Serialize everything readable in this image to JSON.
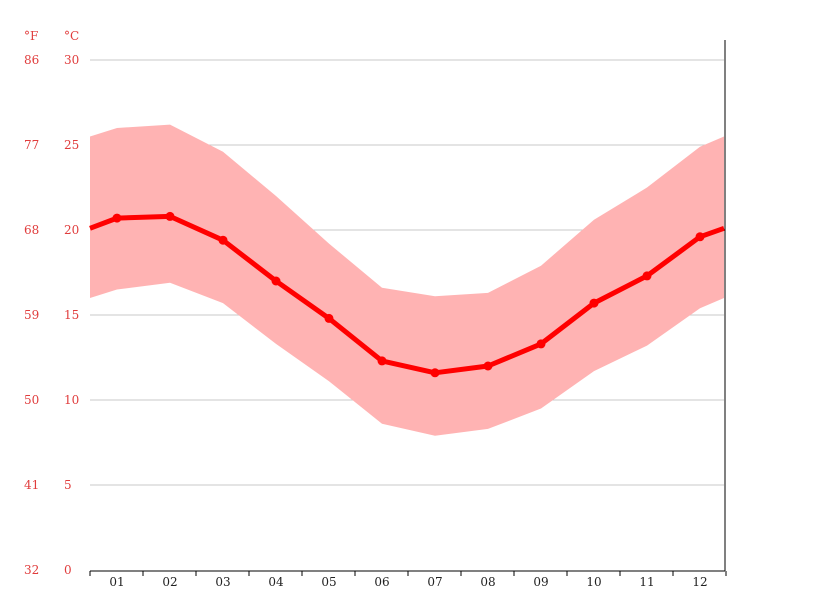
{
  "chart_data": {
    "type": "line",
    "unit_labels": {
      "left": "°F",
      "right": "°C"
    },
    "categories": [
      "01",
      "02",
      "03",
      "04",
      "05",
      "06",
      "07",
      "08",
      "09",
      "10",
      "11",
      "12"
    ],
    "y_ticks_c": [
      0,
      5,
      10,
      15,
      20,
      25,
      30
    ],
    "y_ticks_f": [
      32,
      41,
      50,
      59,
      68,
      77,
      86
    ],
    "ylim": [
      0,
      30
    ],
    "grid": true,
    "series": [
      {
        "values": [
          20.7,
          20.8,
          19.4,
          17.0,
          14.8,
          12.3,
          11.6,
          12.0,
          13.3,
          15.7,
          17.3,
          19.6
        ]
      }
    ],
    "band": {
      "upper": [
        26.0,
        26.2,
        24.6,
        22.0,
        19.2,
        16.6,
        16.1,
        16.3,
        17.9,
        20.6,
        22.5,
        24.9
      ],
      "lower": [
        16.5,
        16.9,
        15.7,
        13.3,
        11.1,
        8.6,
        7.9,
        8.3,
        9.5,
        11.7,
        13.2,
        15.4
      ]
    },
    "edge_values": {
      "line": [
        20.1,
        20.1
      ],
      "upper": [
        25.5,
        25.5
      ],
      "lower": [
        16.0,
        16.0
      ]
    },
    "colors": {
      "line": "#ff0000",
      "band": "#ffb3b3",
      "labels": "#e03c3c",
      "grid": "#c8c8c8",
      "axis": "#000000"
    }
  }
}
